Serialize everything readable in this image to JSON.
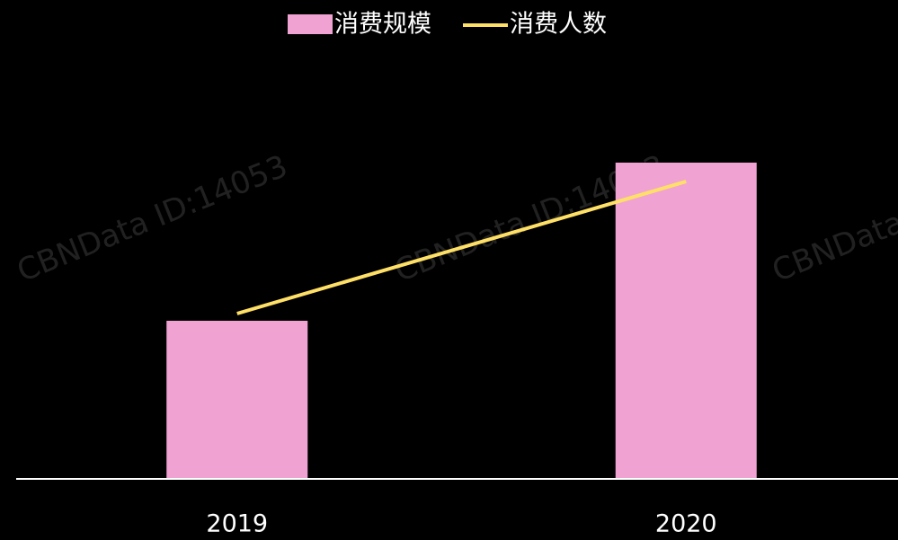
{
  "chart_data": {
    "type": "bar_line",
    "watermark": "CBNData ID:14053",
    "categories": [
      "2019",
      "2020"
    ],
    "series": [
      {
        "name": "消费规模",
        "color": "#f0a3d3",
        "type": "bar",
        "values": [
          176,
          352
        ]
      },
      {
        "name": "消费人数",
        "color": "#ffe066",
        "type": "line",
        "axis": "y2",
        "values": [
          184,
          331
        ]
      }
    ],
    "ylim": [
      0,
      400
    ],
    "y2lim": [
      0,
      400
    ]
  }
}
